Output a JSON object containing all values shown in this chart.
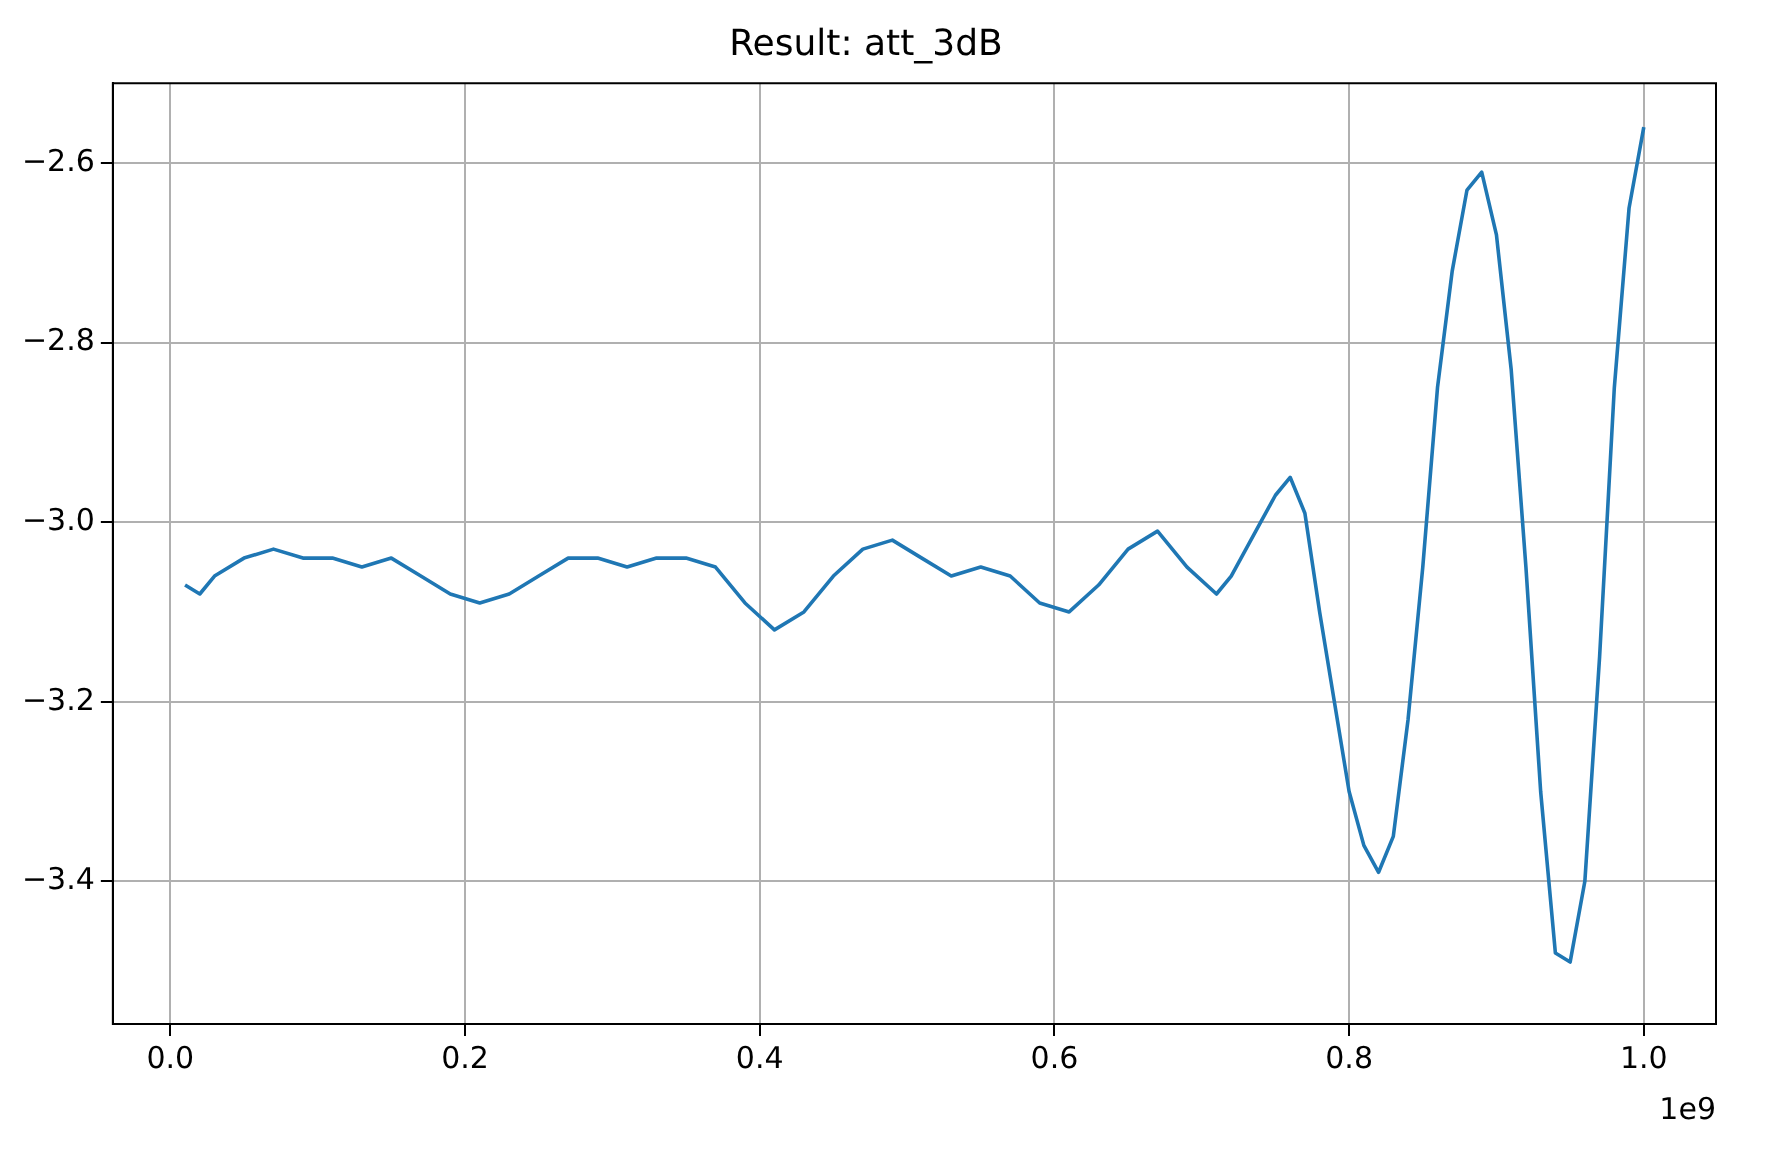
{
  "chart_data": {
    "type": "line",
    "title": "Result: att_3dB",
    "annotations": [
      "1e9"
    ],
    "x": [
      0.01,
      0.02,
      0.03,
      0.05,
      0.07,
      0.09,
      0.11,
      0.13,
      0.15,
      0.17,
      0.19,
      0.21,
      0.23,
      0.25,
      0.27,
      0.29,
      0.31,
      0.33,
      0.35,
      0.37,
      0.39,
      0.41,
      0.43,
      0.45,
      0.47,
      0.49,
      0.51,
      0.53,
      0.55,
      0.57,
      0.59,
      0.61,
      0.63,
      0.65,
      0.67,
      0.69,
      0.71,
      0.72,
      0.74,
      0.75,
      0.76,
      0.77,
      0.78,
      0.79,
      0.8,
      0.81,
      0.82,
      0.83,
      0.84,
      0.85,
      0.86,
      0.87,
      0.88,
      0.89,
      0.9,
      0.91,
      0.92,
      0.93,
      0.94,
      0.95,
      0.96,
      0.97,
      0.98,
      0.99,
      1.0
    ],
    "series": [
      {
        "color": "#1f77b4",
        "values": [
          -3.07,
          -3.08,
          -3.06,
          -3.04,
          -3.03,
          -3.04,
          -3.04,
          -3.05,
          -3.04,
          -3.06,
          -3.08,
          -3.09,
          -3.08,
          -3.06,
          -3.04,
          -3.04,
          -3.05,
          -3.04,
          -3.04,
          -3.05,
          -3.09,
          -3.12,
          -3.1,
          -3.06,
          -3.03,
          -3.02,
          -3.04,
          -3.06,
          -3.05,
          -3.06,
          -3.09,
          -3.1,
          -3.07,
          -3.03,
          -3.01,
          -3.05,
          -3.08,
          -3.06,
          -3,
          -2.97,
          -2.95,
          -2.99,
          -3.1,
          -3.2,
          -3.3,
          -3.36,
          -3.39,
          -3.35,
          -3.22,
          -3.05,
          -2.85,
          -2.72,
          -2.63,
          -2.61,
          -2.68,
          -2.83,
          -3.05,
          -3.3,
          -3.48,
          -3.49,
          -3.4,
          -3.15,
          -2.85,
          -2.65,
          -2.56
        ]
      }
    ],
    "xlim": [
      -0.039,
      1.049
    ],
    "xticks": [
      {
        "value": 0,
        "label": "0.0"
      },
      0.2,
      0.4,
      0.6,
      0.8,
      {
        "value": 1.0,
        "label": "1.0"
      }
    ],
    "ylim": [
      -3.559,
      -2.511
    ],
    "yticks": [
      {
        "value": -3.4,
        "label": "−3.4"
      },
      {
        "value": -3.2,
        "label": "−3.2"
      },
      {
        "value": -3.0,
        "label": "−3.0"
      },
      {
        "value": -2.8,
        "label": "−2.8"
      },
      {
        "value": -2.6,
        "label": "−2.6"
      }
    ],
    "grid": true,
    "legend": false,
    "marker": "none",
    "line_style": "solid"
  }
}
